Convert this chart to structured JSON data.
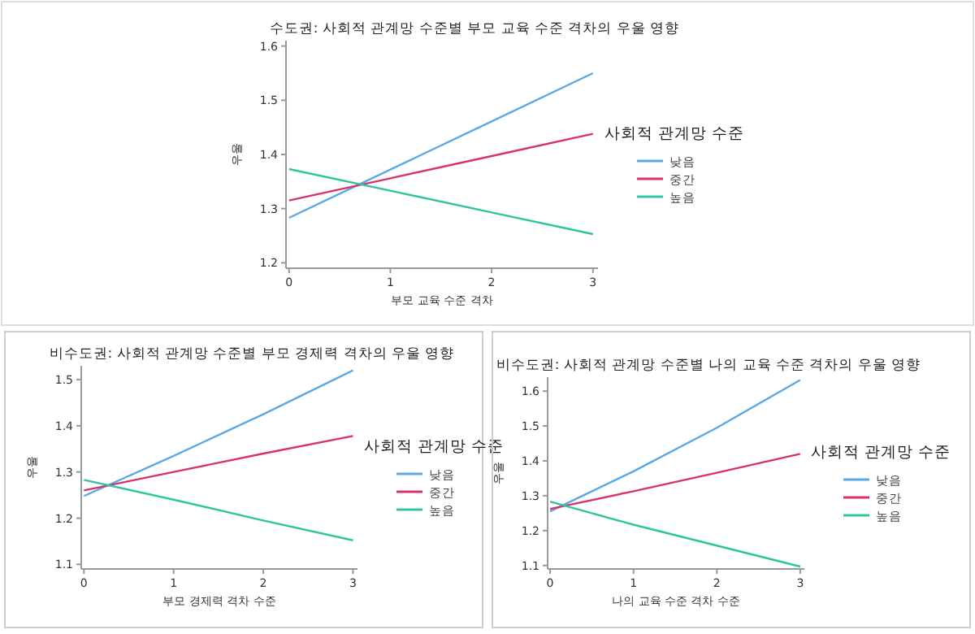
{
  "chart_data": [
    {
      "type": "line",
      "title": "수도권: 사회적 관계망 수준별 부모 교육 수준 격차의 우울 영향",
      "xlabel": "부모 교육 수준 격차",
      "ylabel": "우울",
      "legend_title": "사회적 관계망 수준",
      "legend": "right",
      "x": [
        0,
        1,
        2,
        3
      ],
      "xlim": [
        -0.03,
        3.05
      ],
      "xticks": [
        0,
        1,
        2,
        3
      ],
      "ylim": [
        1.19,
        1.61
      ],
      "yticks": [
        1.2,
        1.3,
        1.4,
        1.5,
        1.6
      ],
      "series": [
        {
          "name": "낮음",
          "color": "#5aa9e6",
          "values": [
            1.283,
            1.372,
            1.461,
            1.55
          ]
        },
        {
          "name": "중간",
          "color": "#d6336c",
          "values": [
            1.315,
            1.356,
            1.397,
            1.438
          ]
        },
        {
          "name": "높음",
          "color": "#2ec4a0",
          "values": [
            1.373,
            1.333,
            1.293,
            1.253
          ]
        }
      ]
    },
    {
      "type": "line",
      "title": "비수도권: 사회적 관계망 수준별 부모 경제력 격차의 우울 영향",
      "xlabel": "부모 경제력 격차 수준",
      "ylabel": "우울",
      "legend_title": "사회적 관계망 수준",
      "legend": "right",
      "x": [
        0,
        1,
        2,
        3
      ],
      "xlim": [
        -0.03,
        3.05
      ],
      "xticks": [
        0,
        1,
        2,
        3
      ],
      "ylim": [
        1.09,
        1.53
      ],
      "yticks": [
        1.1,
        1.2,
        1.3,
        1.4,
        1.5
      ],
      "series": [
        {
          "name": "낮음",
          "color": "#5aa9e6",
          "values": [
            1.248,
            1.335,
            1.425,
            1.52
          ]
        },
        {
          "name": "중간",
          "color": "#d6336c",
          "values": [
            1.26,
            1.3,
            1.34,
            1.378
          ]
        },
        {
          "name": "높음",
          "color": "#2ec4a0",
          "values": [
            1.283,
            1.24,
            1.195,
            1.152
          ]
        }
      ]
    },
    {
      "type": "line",
      "title": "비수도권: 사회적 관계망 수준별 나의 교육 수준 격차의 우울 영향",
      "xlabel": "나의 교육 수준 격차 수준",
      "ylabel": "우울",
      "legend_title": "사회적 관계망 수준",
      "legend": "right",
      "x": [
        0,
        1,
        2,
        3
      ],
      "xlim": [
        -0.03,
        3.05
      ],
      "xticks": [
        0,
        1,
        2,
        3
      ],
      "ylim": [
        1.09,
        1.64
      ],
      "yticks": [
        1.1,
        1.2,
        1.3,
        1.4,
        1.5,
        1.6
      ],
      "series": [
        {
          "name": "낮음",
          "color": "#5aa9e6",
          "values": [
            1.255,
            1.37,
            1.495,
            1.632
          ]
        },
        {
          "name": "중간",
          "color": "#d6336c",
          "values": [
            1.262,
            1.313,
            1.366,
            1.42
          ]
        },
        {
          "name": "높음",
          "color": "#2ec4a0",
          "values": [
            1.283,
            1.217,
            1.157,
            1.097
          ]
        }
      ]
    }
  ]
}
